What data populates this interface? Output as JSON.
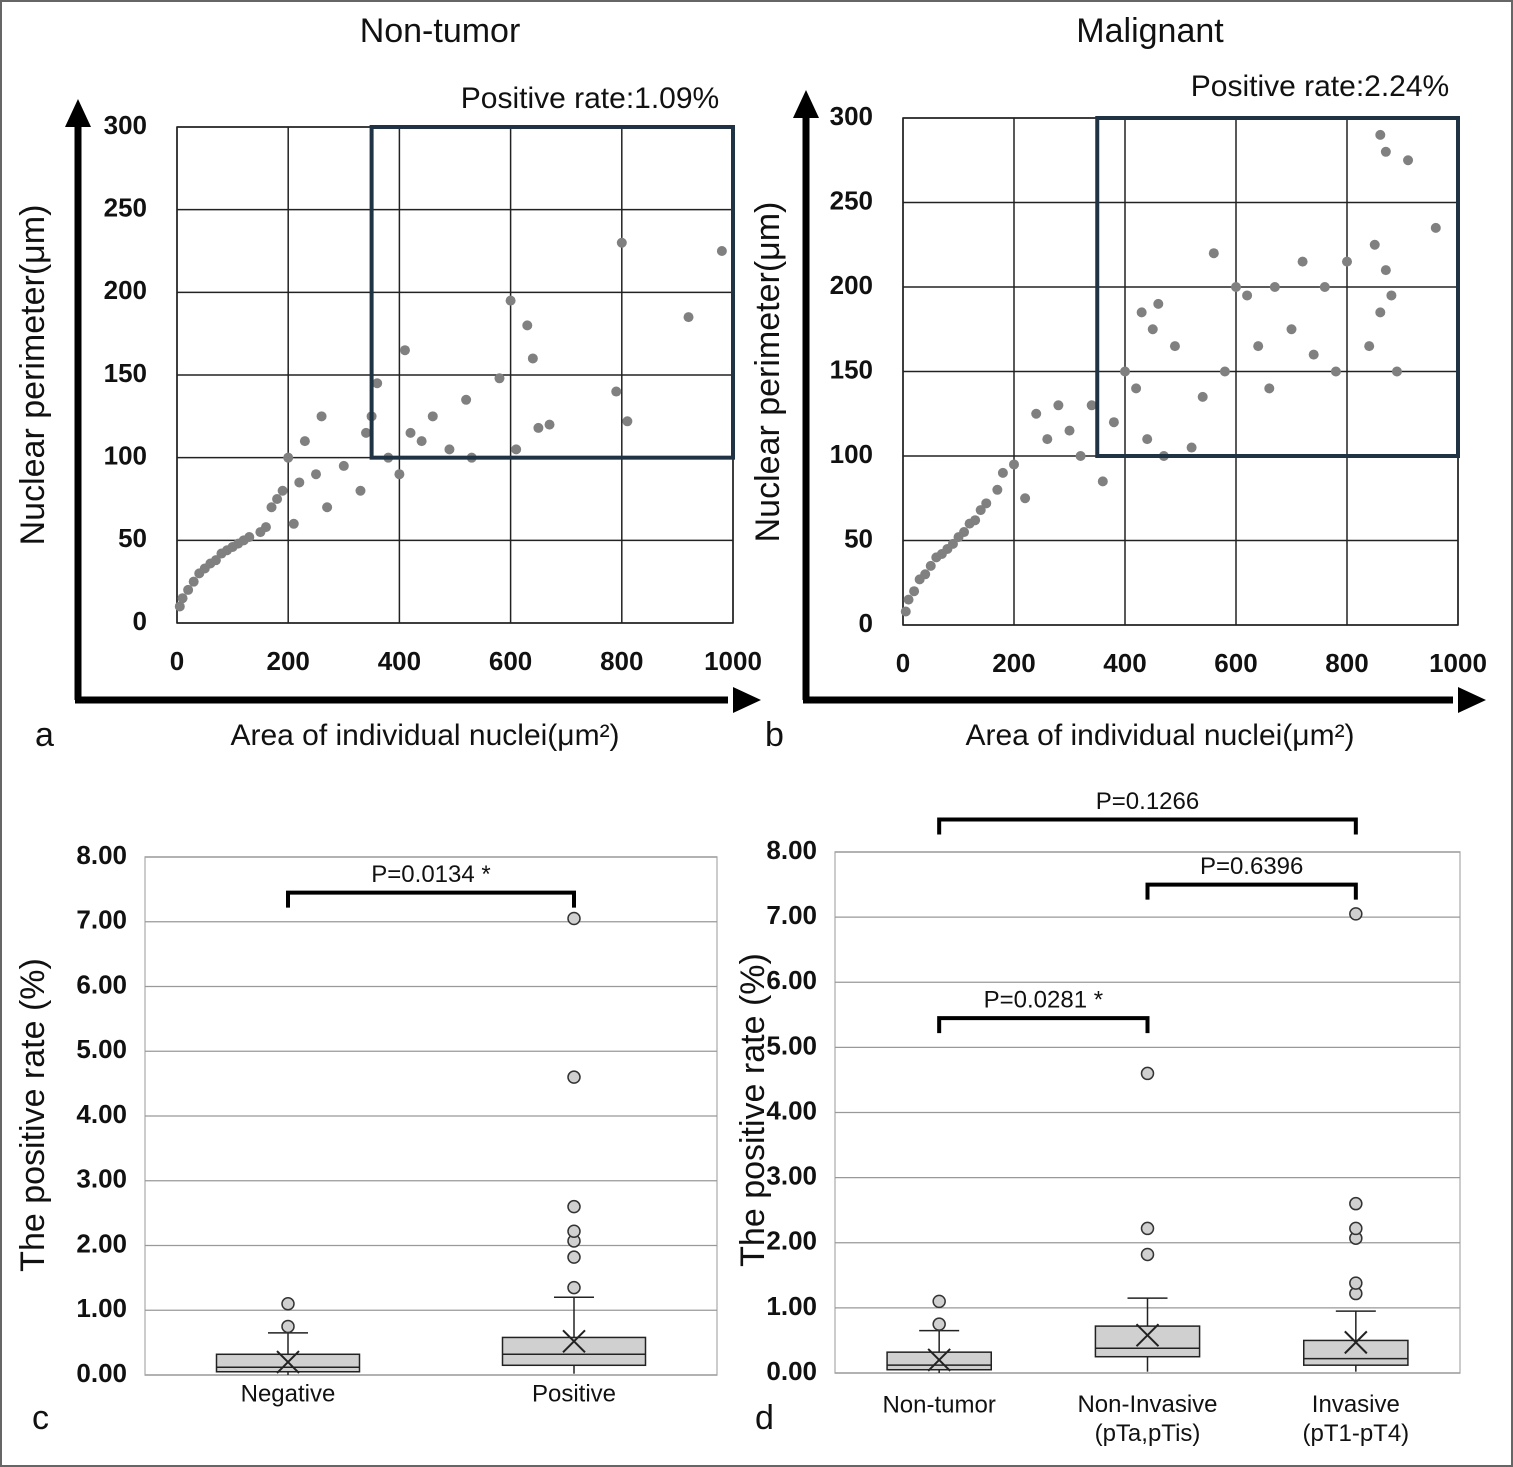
{
  "chart_data": [
    {
      "type": "scatter",
      "panel": "a",
      "title": "Non-tumor",
      "annotation": "Positive rate:1.09%",
      "xlabel": "Area of individual nuclei(μm²)",
      "ylabel": "Nuclear perimeter(μm)",
      "xlim": [
        0,
        1000
      ],
      "ylim": [
        0,
        300
      ],
      "xticks": [
        0,
        200,
        400,
        600,
        800,
        1000
      ],
      "yticks": [
        0,
        50,
        100,
        150,
        200,
        250,
        300
      ],
      "grid": true,
      "color": "#808080",
      "region": {
        "xlim": [
          350,
          1000
        ],
        "ylim": [
          100,
          300
        ],
        "color": "#1f3344"
      },
      "x": [
        5,
        10,
        20,
        30,
        40,
        50,
        60,
        70,
        80,
        90,
        100,
        110,
        120,
        130,
        150,
        160,
        170,
        180,
        190,
        200,
        210,
        220,
        230,
        250,
        260,
        270,
        300,
        330,
        340,
        350,
        360,
        380,
        400,
        410,
        420,
        440,
        460,
        490,
        520,
        530,
        580,
        600,
        610,
        630,
        640,
        650,
        670,
        790,
        800,
        810,
        920,
        980
      ],
      "values": [
        10,
        15,
        20,
        25,
        30,
        33,
        36,
        38,
        42,
        44,
        46,
        48,
        50,
        52,
        55,
        58,
        70,
        75,
        80,
        100,
        60,
        85,
        110,
        90,
        125,
        70,
        95,
        80,
        115,
        125,
        145,
        100,
        90,
        165,
        115,
        110,
        125,
        105,
        135,
        100,
        148,
        195,
        105,
        180,
        160,
        118,
        120,
        140,
        230,
        122,
        185,
        225
      ]
    },
    {
      "type": "scatter",
      "panel": "b",
      "title": "Malignant",
      "annotation": "Positive rate:2.24%",
      "xlabel": "Area of individual nuclei(μm²)",
      "ylabel": "Nuclear perimeter(μm)",
      "xlim": [
        0,
        1000
      ],
      "ylim": [
        0,
        300
      ],
      "xticks": [
        0,
        200,
        400,
        600,
        800,
        1000
      ],
      "yticks": [
        0,
        50,
        100,
        150,
        200,
        250,
        300
      ],
      "grid": true,
      "color": "#808080",
      "region": {
        "xlim": [
          350,
          1000
        ],
        "ylim": [
          100,
          300
        ],
        "color": "#1f3344"
      },
      "x": [
        5,
        10,
        20,
        30,
        40,
        50,
        60,
        70,
        80,
        90,
        100,
        110,
        120,
        130,
        140,
        150,
        170,
        180,
        200,
        220,
        240,
        260,
        280,
        300,
        320,
        340,
        360,
        380,
        400,
        420,
        430,
        440,
        450,
        460,
        470,
        490,
        520,
        540,
        560,
        580,
        600,
        620,
        640,
        660,
        670,
        700,
        720,
        740,
        760,
        780,
        800,
        840,
        850,
        860,
        860,
        870,
        870,
        880,
        890,
        910,
        960
      ],
      "values": [
        8,
        15,
        20,
        27,
        30,
        35,
        40,
        42,
        45,
        48,
        52,
        55,
        60,
        62,
        68,
        72,
        80,
        90,
        95,
        75,
        125,
        110,
        130,
        115,
        100,
        130,
        85,
        120,
        150,
        140,
        185,
        110,
        175,
        190,
        100,
        165,
        105,
        135,
        220,
        150,
        200,
        195,
        165,
        140,
        200,
        175,
        215,
        160,
        200,
        150,
        215,
        165,
        225,
        185,
        290,
        280,
        210,
        195,
        150,
        275,
        235
      ]
    },
    {
      "type": "box",
      "panel": "c",
      "ylabel": "The positive rate (%)",
      "ylim": [
        0,
        8
      ],
      "yticks": [
        {
          "value": 0,
          "label": "0.00"
        },
        {
          "value": 1,
          "label": "1.00"
        },
        {
          "value": 2,
          "label": "2.00"
        },
        {
          "value": 3,
          "label": "3.00"
        },
        {
          "value": 4,
          "label": "4.00"
        },
        {
          "value": 5,
          "label": "5.00"
        },
        {
          "value": 6,
          "label": "6.00"
        },
        {
          "value": 7,
          "label": "7.00"
        },
        {
          "value": 8,
          "label": "8.00"
        }
      ],
      "grid": true,
      "color": "#d0d0d0",
      "categories": [
        "Negative",
        "Positive"
      ],
      "boxes": [
        {
          "min": 0,
          "q1": 0.05,
          "median": 0.12,
          "q3": 0.32,
          "max": 0.65,
          "mean": 0.2,
          "outliers": [
            0.75,
            1.1
          ]
        },
        {
          "min": 0.02,
          "q1": 0.15,
          "median": 0.32,
          "q3": 0.58,
          "max": 1.2,
          "mean": 0.52,
          "outliers": [
            1.35,
            1.82,
            2.07,
            2.22,
            2.6,
            4.6,
            7.05
          ]
        }
      ],
      "comparisons": [
        {
          "label": "P=0.0134 *",
          "between": [
            "Negative",
            "Positive"
          ]
        }
      ]
    },
    {
      "type": "box",
      "panel": "d",
      "ylabel": "The positive rate (%)",
      "ylim": [
        0,
        8
      ],
      "yticks": [
        {
          "value": 0,
          "label": "0.00"
        },
        {
          "value": 1,
          "label": "1.00"
        },
        {
          "value": 2,
          "label": "2.00"
        },
        {
          "value": 3,
          "label": "3.00"
        },
        {
          "value": 4,
          "label": "4.00"
        },
        {
          "value": 5,
          "label": "5.00"
        },
        {
          "value": 6,
          "label": "6.00"
        },
        {
          "value": 7,
          "label": "7.00"
        },
        {
          "value": 8,
          "label": "8.00"
        }
      ],
      "grid": true,
      "color": "#d0d0d0",
      "categories": [
        "Non-tumor",
        "Non-Invasive\n(pTa,pTis)",
        "Invasive\n(pT1-pT4)"
      ],
      "boxes": [
        {
          "min": 0,
          "q1": 0.05,
          "median": 0.12,
          "q3": 0.32,
          "max": 0.65,
          "mean": 0.2,
          "outliers": [
            0.75,
            1.1
          ]
        },
        {
          "min": 0.02,
          "q1": 0.25,
          "median": 0.38,
          "q3": 0.72,
          "max": 1.15,
          "mean": 0.58,
          "outliers": [
            1.82,
            2.22,
            4.6
          ]
        },
        {
          "min": 0.02,
          "q1": 0.12,
          "median": 0.22,
          "q3": 0.5,
          "max": 0.95,
          "mean": 0.47,
          "outliers": [
            1.22,
            1.38,
            2.07,
            2.22,
            2.6,
            7.05
          ]
        }
      ],
      "comparisons": [
        {
          "label": "P=0.1266",
          "between": [
            "Non-tumor",
            "Invasive\n(pT1-pT4)"
          ]
        },
        {
          "label": "P=0.6396",
          "between": [
            "Non-Invasive\n(pTa,pTis)",
            "Invasive\n(pT1-pT4)"
          ]
        },
        {
          "label": "P=0.0281 *",
          "between": [
            "Non-tumor",
            "Non-Invasive\n(pTa,pTis)"
          ]
        }
      ]
    }
  ]
}
